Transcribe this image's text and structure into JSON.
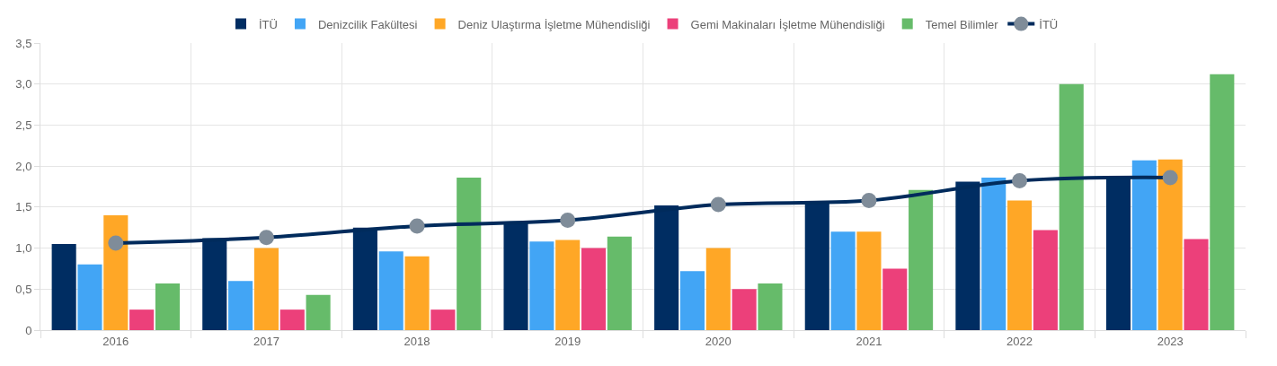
{
  "chart_data": {
    "type": "bar",
    "categories": [
      "2016",
      "2017",
      "2018",
      "2019",
      "2020",
      "2021",
      "2022",
      "2023"
    ],
    "series": [
      {
        "name": "İTÜ",
        "type": "line",
        "color": "#002b5c",
        "colors": [
          "#7f8c99",
          "#7f8c99",
          "#7f8c99",
          "#7f8c99",
          "#7f8c99",
          "#7f8c99",
          "#7f8c99",
          "#7f8c99"
        ],
        "values": [
          1.06,
          1.13,
          1.27,
          1.34,
          1.53,
          1.58,
          1.82,
          1.86
        ]
      },
      {
        "name": "İTÜ",
        "color": "#002d62",
        "values": [
          1.05,
          1.12,
          1.25,
          1.32,
          1.52,
          1.55,
          1.81,
          1.85
        ]
      },
      {
        "name": "Denizcilik Fakültesi",
        "color": "#42a5f5",
        "values": [
          0.8,
          0.6,
          0.96,
          1.08,
          0.72,
          1.2,
          1.86,
          2.07
        ]
      },
      {
        "name": "Deniz Ulaştırma İşletme Mühendisliği",
        "color": "#ffa726",
        "values": [
          1.4,
          1.0,
          0.9,
          1.1,
          1.0,
          1.2,
          1.58,
          2.08
        ]
      },
      {
        "name": "Gemi Makinaları İşletme Mühendisliği",
        "color": "#ec407a",
        "values": [
          0.25,
          0.25,
          0.25,
          1.0,
          0.5,
          0.75,
          1.22,
          1.11
        ]
      },
      {
        "name": "Temel Bilimler",
        "color": "#66bb6a",
        "values": [
          0.57,
          0.43,
          1.86,
          1.14,
          0.57,
          1.71,
          3.0,
          3.12
        ]
      }
    ],
    "ylim": [
      0,
      3.5
    ],
    "yticks": [
      0,
      {
        "value": 0.5,
        "label": "0,5"
      },
      {
        "value": 1,
        "label": "1,0"
      },
      {
        "value": 1.5,
        "label": "1,5"
      },
      {
        "value": 2,
        "label": "2,0"
      },
      {
        "value": 2.5,
        "label": "2,5"
      },
      {
        "value": 3,
        "label": "3,0"
      },
      {
        "value": 3.5,
        "label": "3,5"
      }
    ],
    "grid": true,
    "legend": "top",
    "marker": "circle",
    "line_style": "solid"
  }
}
